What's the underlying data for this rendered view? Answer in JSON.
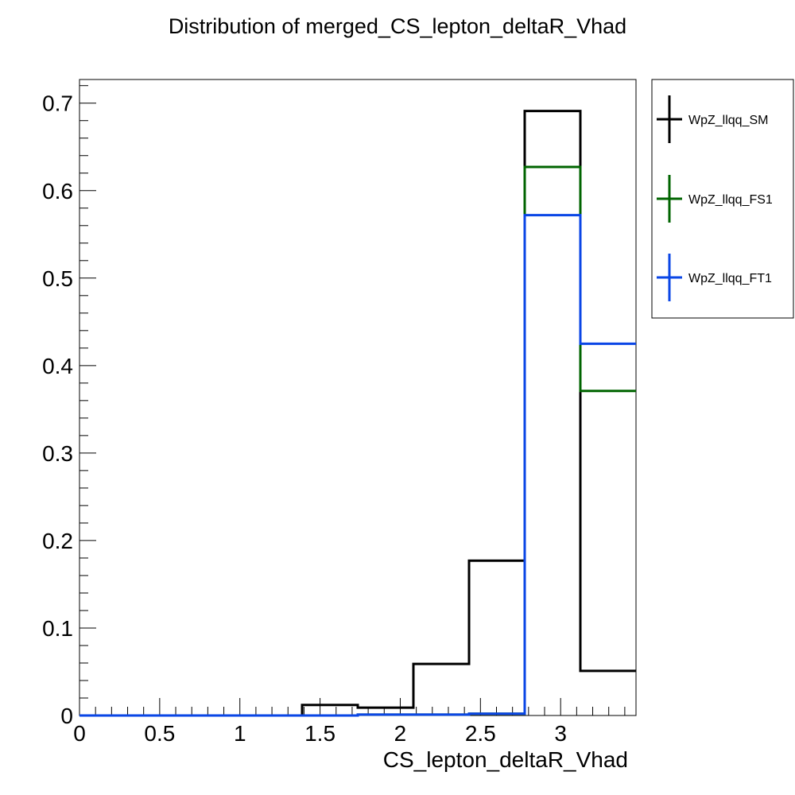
{
  "chart_data": {
    "type": "histogram-step",
    "title": "Distribution of merged_CS_lepton_deltaR_Vhad",
    "xlabel": "CS_lepton_deltaR_Vhad",
    "ylabel": "",
    "xlim": [
      0,
      3.47
    ],
    "ylim": [
      0,
      0.727
    ],
    "x_ticks": [
      "0",
      "0.5",
      "1",
      "1.5",
      "2",
      "2.5",
      "3"
    ],
    "y_ticks": [
      "0",
      "0.1",
      "0.2",
      "0.3",
      "0.4",
      "0.5",
      "0.6",
      "0.7"
    ],
    "bin_edges": [
      0,
      0.347,
      0.694,
      1.041,
      1.388,
      1.735,
      2.082,
      2.429,
      2.776,
      3.123,
      3.47
    ],
    "series": [
      {
        "name": "WpZ_llqq_SM",
        "color": "#000000",
        "values": [
          0,
          0,
          0,
          0,
          0.012,
          0.009,
          0.059,
          0.177,
          0.691,
          0.051
        ]
      },
      {
        "name": "WpZ_llqq_FS1",
        "color": "#006400",
        "values": [
          0,
          0,
          0,
          0,
          0,
          0.001,
          0.001,
          0.002,
          0.627,
          0.371
        ]
      },
      {
        "name": "WpZ_llqq_FT1",
        "color": "#0a46e6",
        "values": [
          0,
          0,
          0,
          0,
          0,
          0.001,
          0.001,
          0.002,
          0.572,
          0.425
        ]
      }
    ],
    "legend_position": "top-right-outside",
    "grid": false
  }
}
